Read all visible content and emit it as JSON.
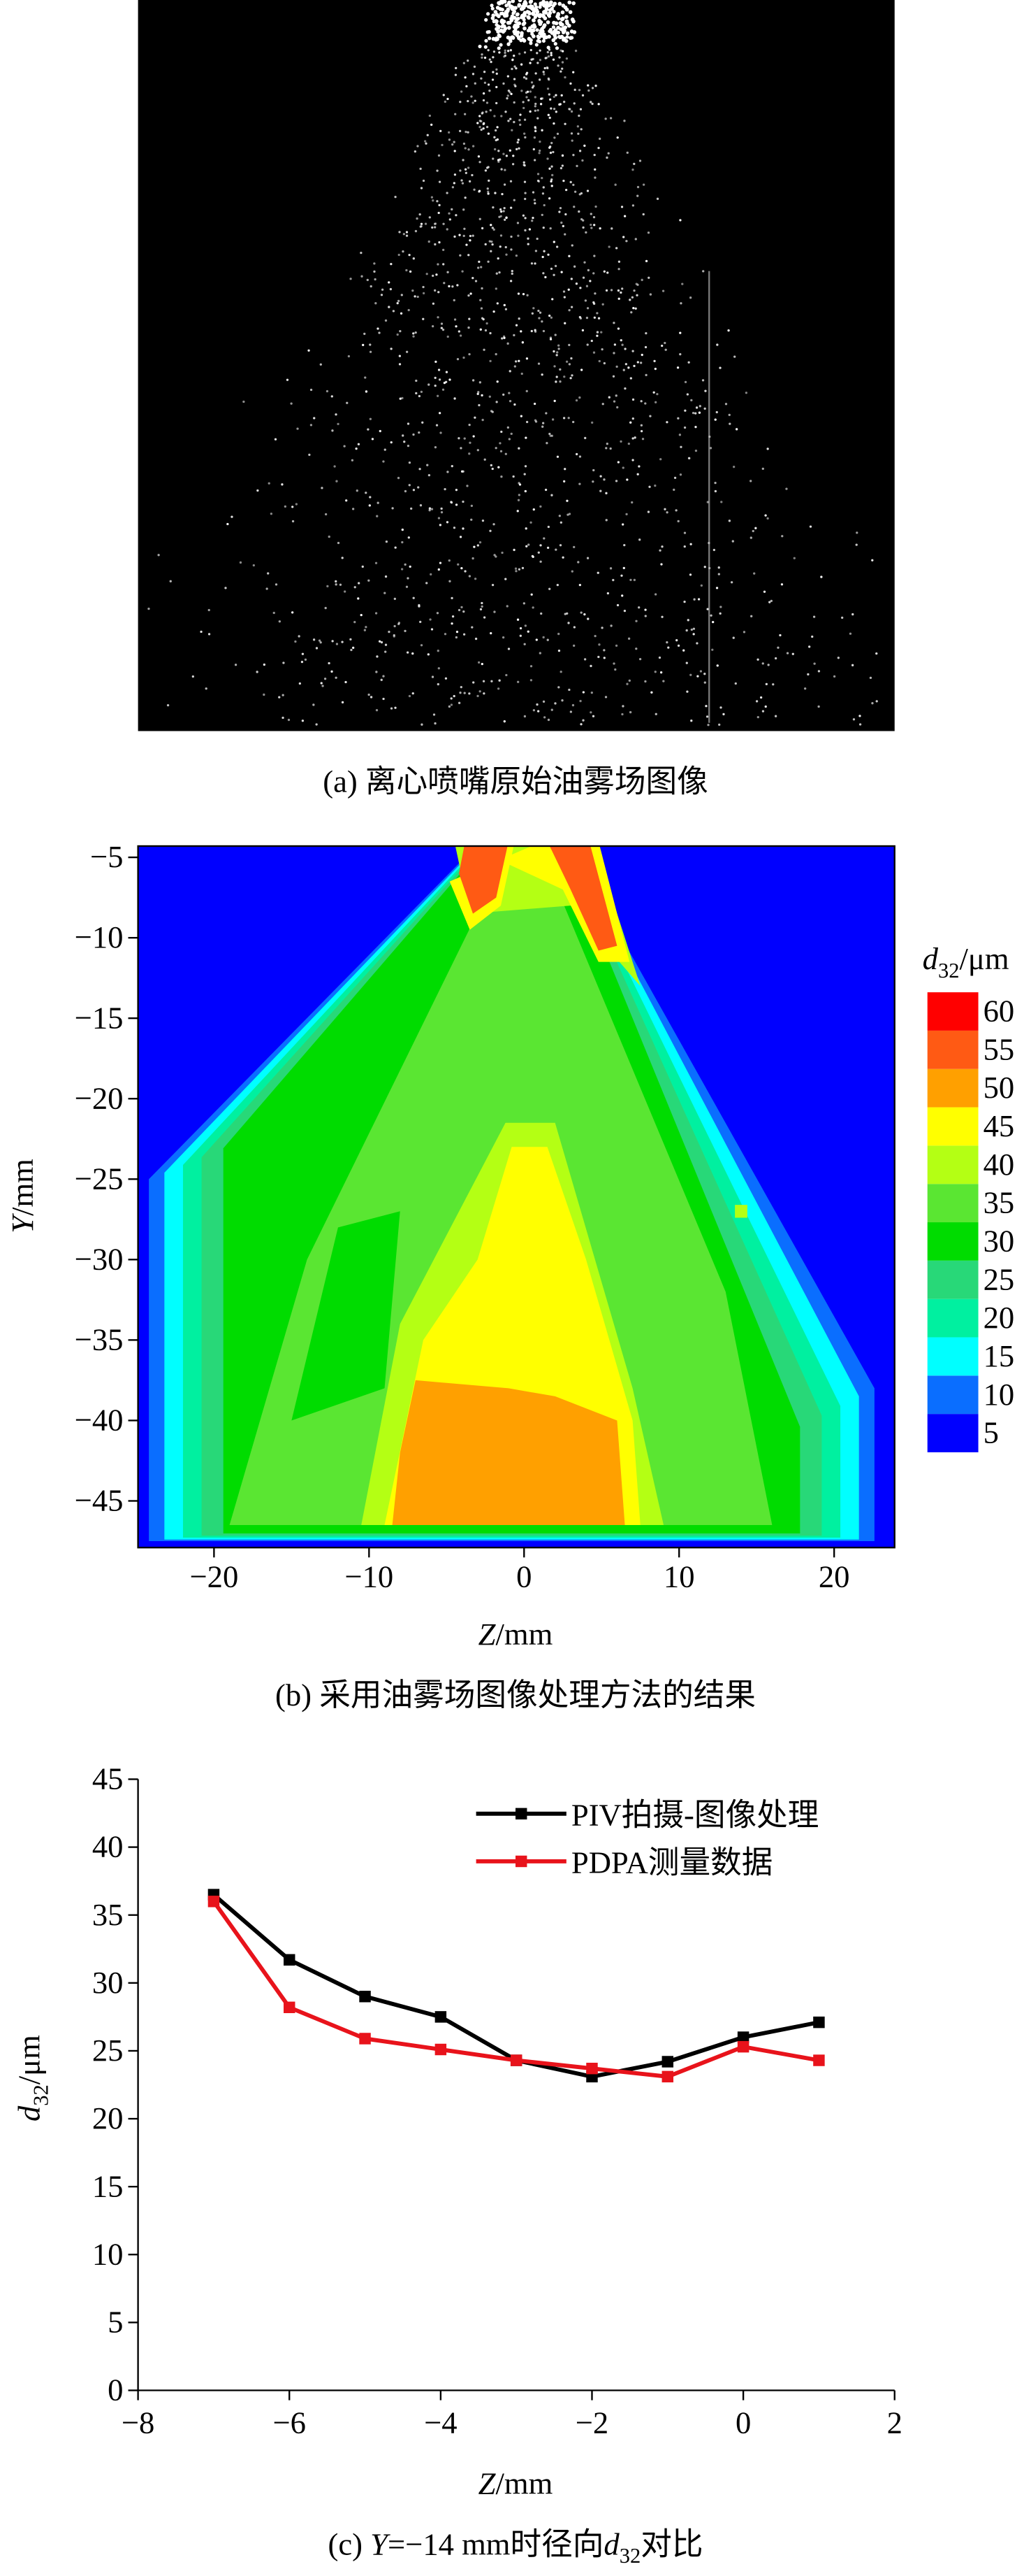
{
  "panel_a": {
    "caption": "(a) 离心喷嘴原始油雾场图像"
  },
  "chart_data": [
    {
      "type": "contour",
      "caption": "(b) 采用油雾场图像处理方法的结果",
      "x_label": [
        "Z",
        "/mm"
      ],
      "y_label": [
        "Y",
        "/mm"
      ],
      "xlim": [
        -24.9,
        23.9
      ],
      "ylim": [
        -47.9,
        -4.3
      ],
      "xticks": [
        {
          "value": -20,
          "label": "−20"
        },
        {
          "value": -10,
          "label": "−10"
        },
        0,
        10,
        20
      ],
      "yticks": [
        {
          "value": -5,
          "label": "−5"
        },
        {
          "value": -10,
          "label": "−10"
        },
        {
          "value": -15,
          "label": "−15"
        },
        {
          "value": -20,
          "label": "−20"
        },
        {
          "value": -25,
          "label": "−25"
        },
        {
          "value": -30,
          "label": "−30"
        },
        {
          "value": -35,
          "label": "−35"
        },
        {
          "value": -40,
          "label": "−40"
        },
        {
          "value": -45,
          "label": "−45"
        }
      ],
      "colorbar_title": [
        "d",
        "32",
        "/μm"
      ],
      "levels": [
        5,
        10,
        15,
        20,
        25,
        30,
        35,
        40,
        45,
        50,
        55,
        60
      ],
      "level_colors": [
        "#0000ff",
        "#0a6eff",
        "#00ffff",
        "#00f0a0",
        "#28d878",
        "#00dc00",
        "#5ae632",
        "#b4ff14",
        "#ffff00",
        "#ffa000",
        "#ff5a14",
        "#ff0000"
      ]
    },
    {
      "type": "line",
      "caption": [
        "(c) ",
        "Y",
        "=−14 mm时径向",
        "d",
        "32",
        "对比"
      ],
      "x_label": [
        "Z",
        "/mm"
      ],
      "y_label": [
        "d",
        "32",
        "/μm"
      ],
      "xlim": [
        -8,
        2
      ],
      "ylim": [
        0,
        45
      ],
      "xticks": [
        {
          "value": -8,
          "label": "−8"
        },
        {
          "value": -6,
          "label": "−6"
        },
        {
          "value": -4,
          "label": "−4"
        },
        {
          "value": -2,
          "label": "−2"
        },
        0,
        2
      ],
      "yticks": [
        0,
        5,
        10,
        15,
        20,
        25,
        30,
        35,
        40,
        45
      ],
      "x": [
        -7,
        -6,
        -5,
        -4,
        -3,
        -2,
        -1,
        0,
        1
      ],
      "series": [
        {
          "name": "PIV拍摄-图像处理",
          "color": "#000000",
          "values": [
            36.5,
            31.7,
            29.0,
            27.5,
            24.3,
            23.1,
            24.2,
            26.0,
            27.1
          ]
        },
        {
          "name": "PDPA测量数据",
          "color": "#e8131b",
          "values": [
            36.0,
            28.2,
            25.9,
            25.1,
            24.3,
            23.7,
            23.1,
            25.3,
            24.3
          ]
        }
      ]
    }
  ]
}
